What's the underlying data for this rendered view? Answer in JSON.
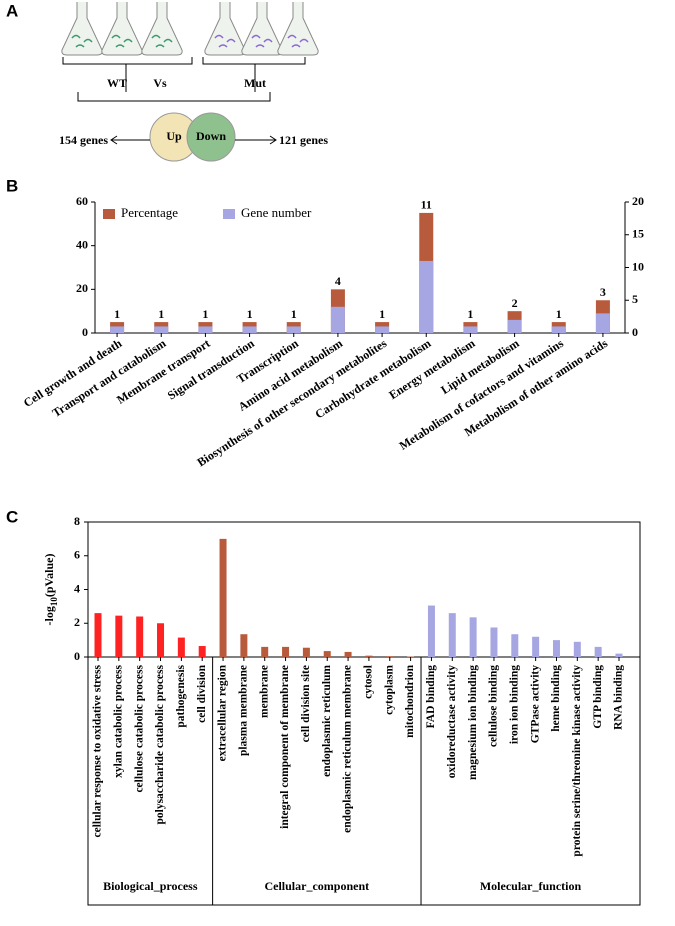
{
  "panel_labels": [
    "A",
    "B",
    "C"
  ],
  "diagram": {
    "left_group": "WT",
    "versus": "Vs",
    "right_group": "Mut",
    "up": {
      "label": "Up",
      "count": "154 genes"
    },
    "down": {
      "label": "Down",
      "count": "121 genes"
    }
  },
  "chart_data": [
    {
      "type": "bar",
      "categories": [
        "Cell growth and death",
        "Transport and catabolism",
        "Membrane transport",
        "Signal transduction",
        "Transcription",
        "Amino acid metabolism",
        "Biosynthesis of other secondary metabolites",
        "Carbohydrate metabolism",
        "Energy metabolism",
        "Lipid metabolism",
        "Metabolism of cofactors and vitamins",
        "Metabolism of other amino acids"
      ],
      "series": [
        {
          "name": "Percentage",
          "color": "#b85a3c",
          "values": [
            5,
            5,
            5,
            5,
            5,
            20,
            5,
            55,
            5,
            10,
            5,
            15
          ]
        },
        {
          "name": "Gene number",
          "color": "#a6a6e2",
          "axis": "y2",
          "values": [
            1,
            1,
            1,
            1,
            1,
            4,
            1,
            11,
            1,
            2,
            1,
            3
          ]
        }
      ],
      "ylim": [
        0,
        60
      ],
      "yticks": [
        0,
        20,
        40,
        60
      ],
      "y2lim": [
        0,
        20
      ],
      "y2ticks": [
        0,
        5,
        10,
        15,
        20
      ],
      "legend": "top-left"
    },
    {
      "type": "grouped-category-bar",
      "y_label": {
        "prefix": "-log",
        "subscript": "10",
        "suffix": "(pValue)"
      },
      "ylim": [
        0,
        8
      ],
      "yticks": [
        0,
        2,
        4,
        6,
        8
      ],
      "groups": [
        {
          "name": "Biological_process",
          "color": "#ff2222",
          "categories": [
            "cellular response to oxidative stress",
            "xylan catabolic process",
            "cellulose catabolic process",
            "polysaccharide catabolic process",
            "pathogenesis",
            "cell division"
          ],
          "values": [
            2.6,
            2.45,
            2.4,
            2.0,
            1.15,
            0.65
          ]
        },
        {
          "name": "Cellular_component",
          "color": "#b85a3c",
          "categories": [
            "extracellular region",
            "plasma membrane",
            "membrane",
            "integral component of membrane",
            "cell division site",
            "endoplasmic reticulum",
            "endoplasmic reticulum membrane",
            "cytosol",
            "cytoplasm",
            "mitochondrion"
          ],
          "values": [
            7.0,
            1.35,
            0.6,
            0.6,
            0.55,
            0.35,
            0.3,
            0.08,
            0.05,
            0.03
          ]
        },
        {
          "name": "Molecular_function",
          "color": "#a6a6e2",
          "categories": [
            "FAD binding",
            "oxidoreductase activity",
            "magnesium ion binding",
            "cellulose binding",
            "iron ion binding",
            "GTPase activity",
            "heme binding",
            "protein serine/threonine kinase activity",
            "GTP binding",
            "RNA binding"
          ],
          "values": [
            3.05,
            2.6,
            2.35,
            1.75,
            1.35,
            1.2,
            1.0,
            0.9,
            0.6,
            0.2
          ]
        }
      ]
    }
  ]
}
